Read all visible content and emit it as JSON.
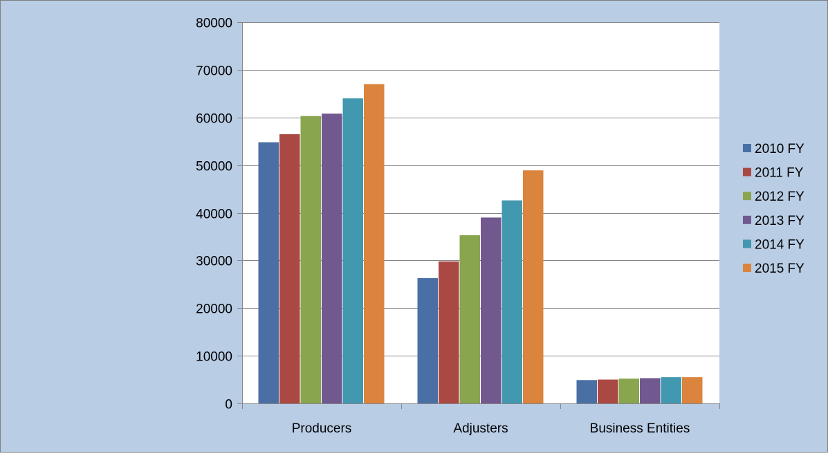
{
  "chart_data": {
    "type": "bar",
    "title": "",
    "xlabel": "",
    "ylabel": "",
    "ylim": [
      0,
      80000
    ],
    "y_ticks": [
      0,
      10000,
      20000,
      30000,
      40000,
      50000,
      60000,
      70000,
      80000
    ],
    "grid": true,
    "legend_position": "right",
    "categories": [
      "Producers",
      "Adjusters",
      "Business Entities"
    ],
    "series": [
      {
        "name": "2010 FY",
        "color": "#4a6fa5",
        "values": [
          54800,
          26300,
          4900
        ]
      },
      {
        "name": "2011 FY",
        "color": "#aa4844",
        "values": [
          56500,
          29800,
          5000
        ]
      },
      {
        "name": "2012 FY",
        "color": "#89a54e",
        "values": [
          60300,
          35300,
          5200
        ]
      },
      {
        "name": "2013 FY",
        "color": "#71588f",
        "values": [
          60800,
          39000,
          5300
        ]
      },
      {
        "name": "2014 FY",
        "color": "#4198af",
        "values": [
          64000,
          42600,
          5500
        ]
      },
      {
        "name": "2015 FY",
        "color": "#db843d",
        "values": [
          67000,
          48900,
          5500
        ]
      }
    ]
  },
  "style": {
    "background": "#b9cde5",
    "plot_background": "#ffffff",
    "gridline_color": "#868686",
    "axis_color": "#868686",
    "text_color": "#000000",
    "border_color": "#7f7f7f"
  }
}
